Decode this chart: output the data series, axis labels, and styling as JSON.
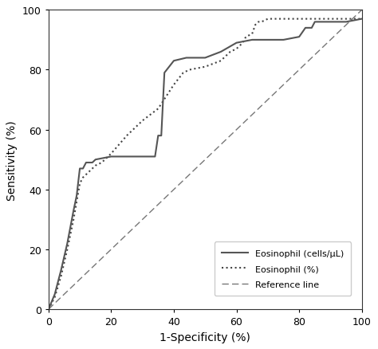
{
  "title": "",
  "xlabel": "1-Specificity (%)",
  "ylabel": "Sensitivity (%)",
  "xlim": [
    0,
    100
  ],
  "ylim": [
    0,
    100
  ],
  "xticks": [
    0,
    20,
    40,
    60,
    80,
    100
  ],
  "yticks": [
    0,
    20,
    40,
    60,
    80,
    100
  ],
  "reference_line": [
    [
      0,
      0
    ],
    [
      100,
      100
    ]
  ],
  "solid_curve": [
    [
      0,
      0
    ],
    [
      2,
      5
    ],
    [
      4,
      13
    ],
    [
      6,
      22
    ],
    [
      8,
      33
    ],
    [
      9,
      38
    ],
    [
      10,
      47
    ],
    [
      11,
      47
    ],
    [
      12,
      49
    ],
    [
      14,
      49
    ],
    [
      15,
      50
    ],
    [
      20,
      51
    ],
    [
      22,
      51
    ],
    [
      34,
      51
    ],
    [
      35,
      58
    ],
    [
      36,
      58
    ],
    [
      37,
      79
    ],
    [
      40,
      83
    ],
    [
      44,
      84
    ],
    [
      50,
      84
    ],
    [
      55,
      86
    ],
    [
      60,
      89
    ],
    [
      65,
      90
    ],
    [
      75,
      90
    ],
    [
      80,
      91
    ],
    [
      82,
      94
    ],
    [
      84,
      94
    ],
    [
      85,
      96
    ],
    [
      95,
      96
    ],
    [
      100,
      97
    ]
  ],
  "dotted_curve": [
    [
      0,
      0
    ],
    [
      2,
      4
    ],
    [
      4,
      11
    ],
    [
      6,
      20
    ],
    [
      8,
      30
    ],
    [
      9,
      36
    ],
    [
      10,
      42
    ],
    [
      11,
      44
    ],
    [
      12,
      45
    ],
    [
      13,
      46
    ],
    [
      14,
      47
    ],
    [
      15,
      48
    ],
    [
      17,
      49
    ],
    [
      18,
      50
    ],
    [
      20,
      52
    ],
    [
      25,
      58
    ],
    [
      30,
      63
    ],
    [
      35,
      67
    ],
    [
      40,
      75
    ],
    [
      43,
      79
    ],
    [
      45,
      80
    ],
    [
      50,
      81
    ],
    [
      55,
      83
    ],
    [
      58,
      86
    ],
    [
      60,
      87
    ],
    [
      62,
      89
    ],
    [
      63,
      91
    ],
    [
      65,
      92
    ],
    [
      66,
      95
    ],
    [
      67,
      96
    ],
    [
      68,
      96
    ],
    [
      70,
      97
    ],
    [
      100,
      97
    ]
  ],
  "solid_color": "#555555",
  "dotted_color": "#444444",
  "ref_color": "#777777",
  "legend_labels": [
    "Eosinophil (cells/μL)",
    "Eosinophil (%)",
    "Reference line"
  ],
  "background_color": "#ffffff",
  "figsize": [
    4.74,
    4.39
  ],
  "dpi": 100
}
